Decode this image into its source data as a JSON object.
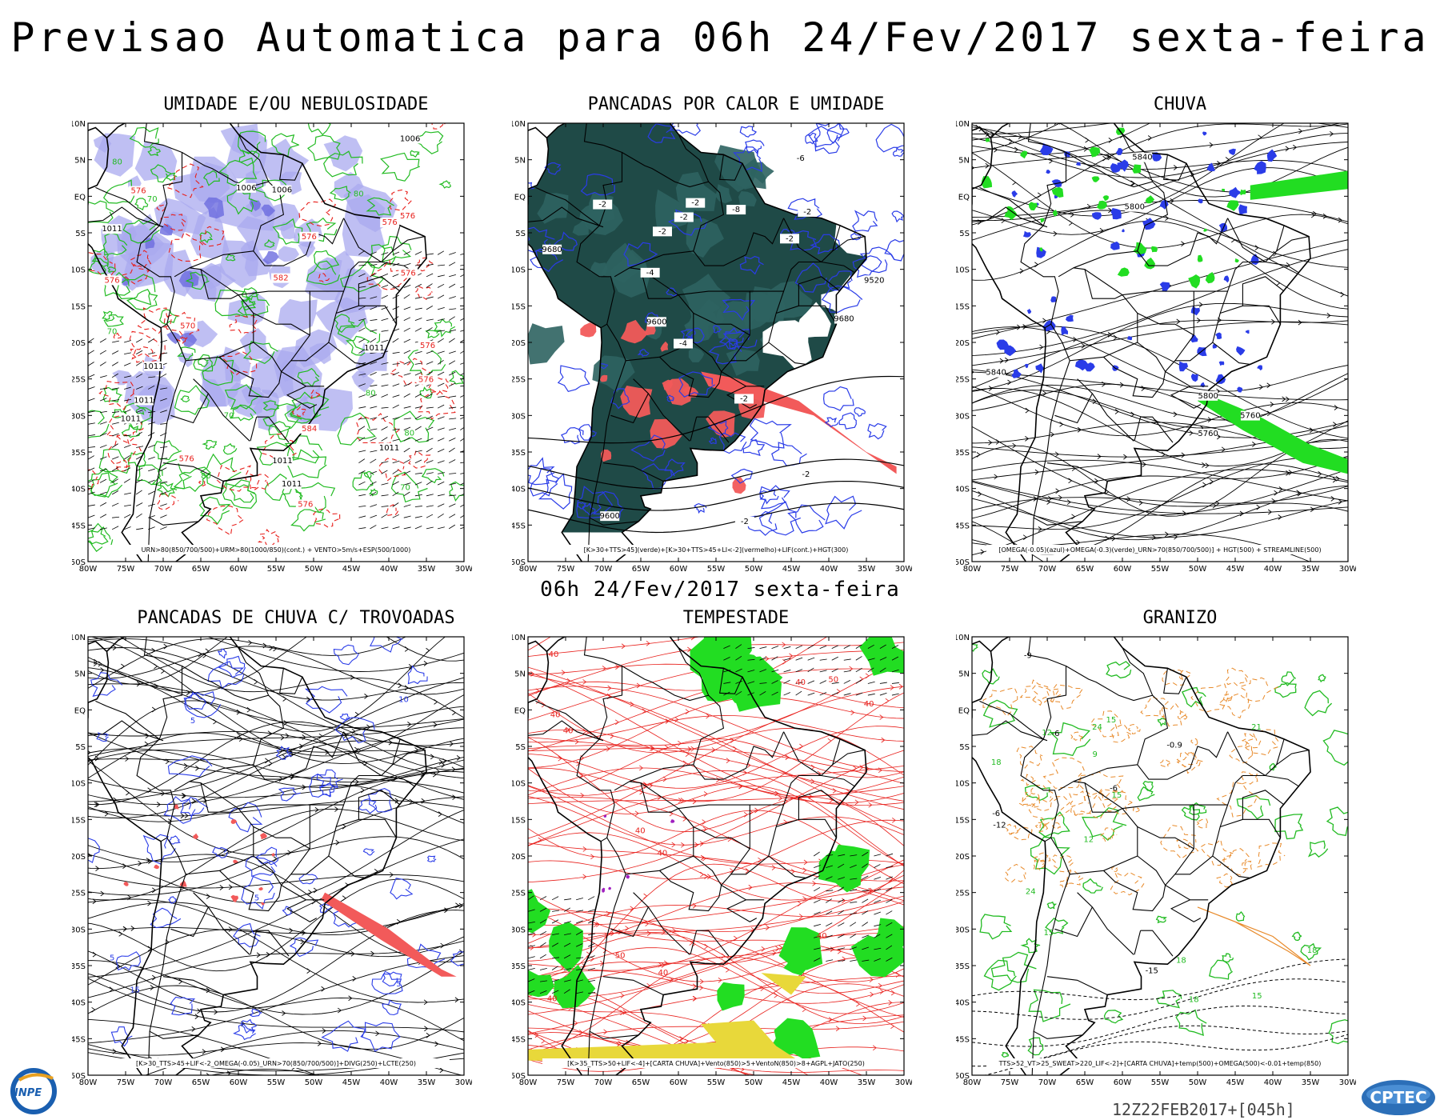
{
  "title": "Previsao Automatica  para 06h 24/Fev/2017 sexta-feira",
  "subtitle": "06h 24/Fev/2017 sexta-feira",
  "footer_stamp": "12Z22FEB2017+[045h]",
  "logos": {
    "left": "INPE",
    "right": "CPTEC"
  },
  "axes": {
    "lon_labels": [
      "80W",
      "75W",
      "70W",
      "65W",
      "60W",
      "55W",
      "50W",
      "45W",
      "40W",
      "35W",
      "30W"
    ],
    "lat_labels": [
      "10N",
      "5N",
      "EQ",
      "5S",
      "10S",
      "15S",
      "20S",
      "25S",
      "30S",
      "35S",
      "40S",
      "45S",
      "50S"
    ]
  },
  "colors": {
    "green_contour": "#22bb22",
    "red_dashed": "#e8201c",
    "blue_contour": "#2a3ce8",
    "dark_teal": "#1f4a47",
    "salmon": "#f25a5a",
    "bright_green": "#22dd22",
    "lavender": "#a9a9ef",
    "yellow": "#e8d83a",
    "orange": "#e88a2a"
  },
  "panels": [
    {
      "title": "UMIDADE E/OU NEBULOSIDADE",
      "caption": "URN>80(850/700/500)+URM>80(1000/850)(cont.) + VENTO>5m/s+ESP(500/1000)",
      "labels": [
        "1011",
        "1011",
        "1011",
        "1011",
        "1011",
        "1011",
        "1011",
        "1006",
        "1006",
        "1006",
        "1011",
        "576",
        "576",
        "576",
        "576",
        "576",
        "576",
        "576",
        "576",
        "576",
        "576",
        "582",
        "584",
        "570",
        "70",
        "70",
        "70",
        "70",
        "80",
        "80",
        "80",
        "80",
        "80"
      ]
    },
    {
      "title": "PANCADAS POR CALOR E UMIDADE",
      "caption": "[K>30+TTS>45](verde)+[K>30+TTS>45+LI<-2](vermelho)+LIF(cont.)+HGT(300)",
      "labels": [
        "9680",
        "9680",
        "9600",
        "9600",
        "9520",
        "-2",
        "-2",
        "-2",
        "-2",
        "-2",
        "-2",
        "-2",
        "-2",
        "-4",
        "-4",
        "-6",
        "-8",
        "-2"
      ]
    },
    {
      "title": "CHUVA",
      "caption": "[OMEGA(-0.05)(azul)+OMEGA(-0.3)(verde)_URN>70(850/700/500)] + HGT(500) + STREAMLINE(500)",
      "labels": [
        "5840",
        "5840",
        "5800",
        "5760",
        "5760",
        "5800"
      ]
    },
    {
      "title": "PANCADAS DE CHUVA C/ TROVOADAS",
      "caption": "[K>30_TTS>45+LIF<-2_OMEGA(-0.05)_URN>70(850/700/500)]+DIVG(250)+LCTE(250)",
      "labels": [
        "5",
        "5",
        "5",
        "15",
        "10",
        "5"
      ]
    },
    {
      "title": "TEMPESTADE",
      "caption": "[K>35_TTS>50+LIF<-4]+[CARTA CHUVA]+Vento(850)>5+VentoN(850)>8+AGPL+JATO(250)",
      "labels": [
        "40",
        "40",
        "40",
        "40",
        "40",
        "40",
        "50",
        "50",
        "40",
        "40",
        "40",
        "40"
      ]
    },
    {
      "title": "GRANIZO",
      "caption": "TTS>52_VT>25_SWEAT>220_LIF<-2]+[CARTA CHUVA]+temp(500)+OMEGA(500)<-0.01+temp(850)",
      "labels": [
        "18",
        "18",
        "18",
        "18",
        "15",
        "15",
        "15",
        "15",
        "12",
        "12",
        "9",
        "24",
        "24",
        "21",
        "-6",
        "-6",
        "-9",
        "-12",
        "-15",
        "-0.9",
        "-6"
      ]
    }
  ]
}
